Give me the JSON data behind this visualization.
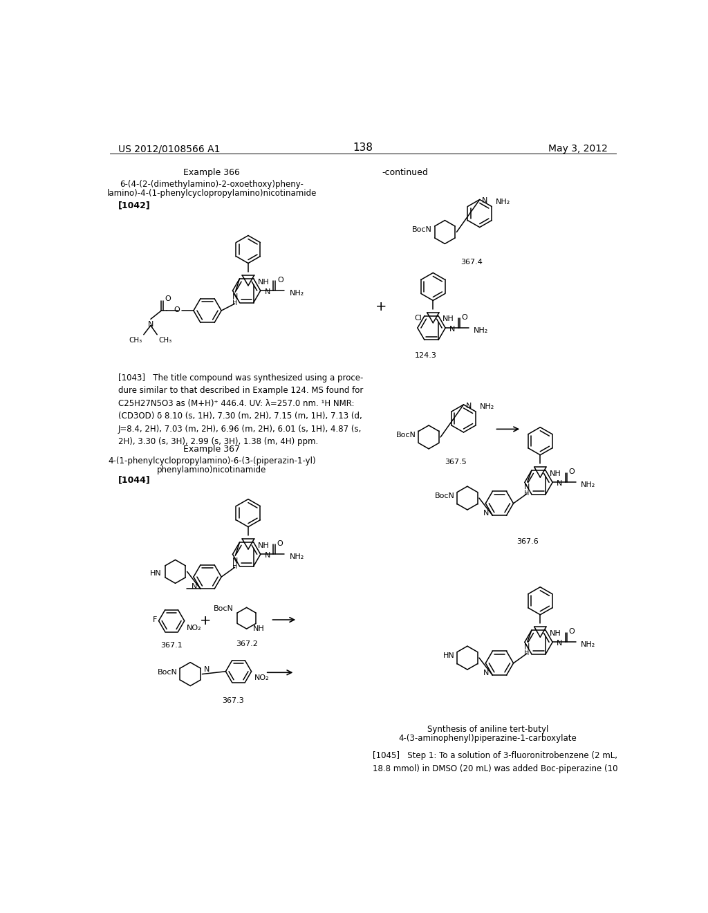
{
  "background_color": "#ffffff",
  "header_left": "US 2012/0108566 A1",
  "header_right": "May 3, 2012",
  "page_number": "138"
}
